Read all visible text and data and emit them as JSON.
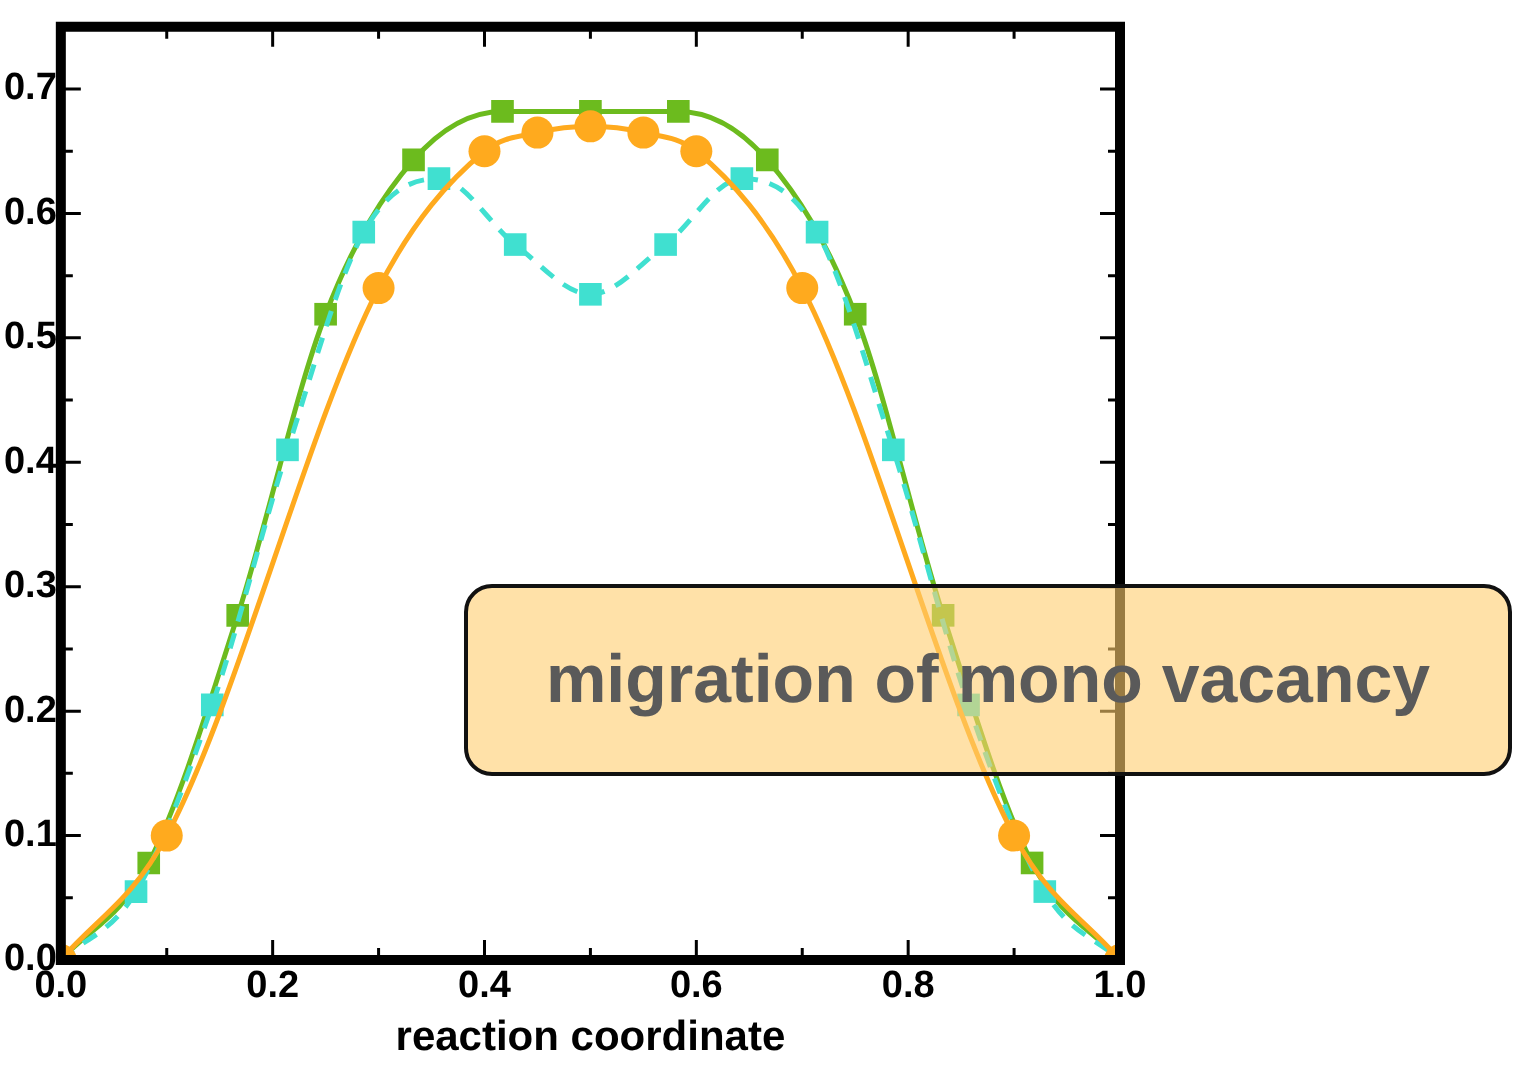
{
  "chart_data": {
    "type": "line",
    "xlabel": "reaction coordinate",
    "xlim": [
      0,
      1
    ],
    "ylim": [
      0,
      0.75
    ],
    "xticks": [
      {
        "value": 0,
        "label": "0.0"
      },
      {
        "value": 0.1,
        "label": null
      },
      {
        "value": 0.2,
        "label": "0.2"
      },
      {
        "value": 0.3,
        "label": null
      },
      {
        "value": 0.4,
        "label": "0.4"
      },
      {
        "value": 0.5,
        "label": null
      },
      {
        "value": 0.6,
        "label": "0.6"
      },
      {
        "value": 0.7,
        "label": null
      },
      {
        "value": 0.8,
        "label": "0.8"
      },
      {
        "value": 0.9,
        "label": null
      },
      {
        "value": 1,
        "label": "1.0"
      }
    ],
    "yticks": [
      {
        "value": 0,
        "label": "0.0"
      },
      {
        "value": 0.05,
        "label": null
      },
      {
        "value": 0.1,
        "label": "0.1"
      },
      {
        "value": 0.15,
        "label": null
      },
      {
        "value": 0.2,
        "label": "0.2"
      },
      {
        "value": 0.25,
        "label": null
      },
      {
        "value": 0.3,
        "label": "0.3"
      },
      {
        "value": 0.35,
        "label": null
      },
      {
        "value": 0.4,
        "label": "0.4"
      },
      {
        "value": 0.45,
        "label": null
      },
      {
        "value": 0.5,
        "label": "0.5"
      },
      {
        "value": 0.55,
        "label": null
      },
      {
        "value": 0.6,
        "label": "0.6"
      },
      {
        "value": 0.65,
        "label": null
      },
      {
        "value": 0.7,
        "label": "0.7"
      }
    ],
    "grid": false,
    "legend": false,
    "annotations": [
      "migration of mono vacancy"
    ],
    "series": [
      {
        "color": "#ffaa1e",
        "marker": "circle",
        "line_style": "solid",
        "x": [
          0,
          0.1,
          0.3,
          0.4,
          0.45,
          0.5,
          0.55,
          0.6,
          0.7,
          0.9,
          1
        ],
        "values": [
          0,
          0.1,
          0.54,
          0.65,
          0.665,
          0.67,
          0.665,
          0.65,
          0.54,
          0.1,
          0
        ]
      },
      {
        "color": "#40e0d0",
        "marker": "square",
        "line_style": "dashed",
        "x": [
          0,
          0.071,
          0.143,
          0.214,
          0.286,
          0.357,
          0.429,
          0.5,
          0.571,
          0.643,
          0.714,
          0.786,
          0.857,
          0.929,
          1
        ],
        "values": [
          0,
          0.055,
          0.205,
          0.41,
          0.585,
          0.628,
          0.575,
          0.535,
          0.575,
          0.628,
          0.585,
          0.41,
          0.205,
          0.055,
          0
        ]
      },
      {
        "color": "#6cbb1e",
        "marker": "square",
        "line_style": "solid",
        "x": [
          0,
          0.083,
          0.167,
          0.25,
          0.333,
          0.417,
          0.5,
          0.583,
          0.667,
          0.75,
          0.833,
          0.917,
          1
        ],
        "values": [
          0,
          0.078,
          0.277,
          0.519,
          0.643,
          0.682,
          0.682,
          0.682,
          0.643,
          0.519,
          0.277,
          0.078,
          0
        ]
      }
    ]
  }
}
